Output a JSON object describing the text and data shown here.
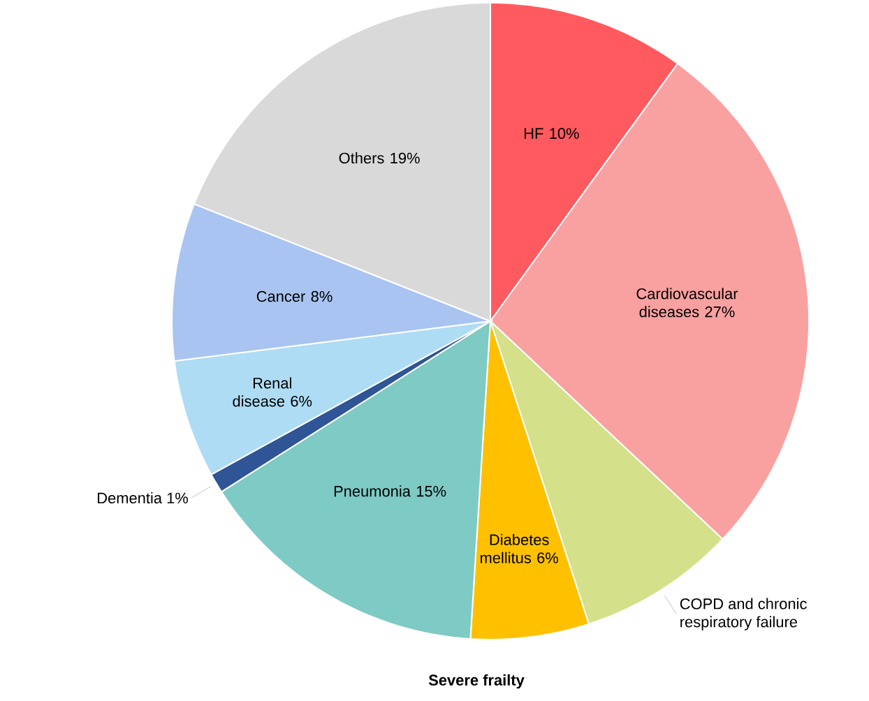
{
  "chart_data": {
    "type": "pie",
    "title": "Severe frailty",
    "categories": [
      "HF",
      "Cardiovascular diseases",
      "COPD and chronic respiratory failure",
      "Diabetes mellitus",
      "Pneumonia",
      "Dementia",
      "Renal disease",
      "Cancer",
      "Others"
    ],
    "values": [
      10,
      27,
      8,
      6,
      15,
      1,
      6,
      8,
      19
    ],
    "value_labels": [
      "10%",
      "27%",
      null,
      "6%",
      "15%",
      "1%",
      "6%",
      "8%",
      "19%"
    ],
    "colors": [
      "#ff5a5f",
      "#f9a0a0",
      "#d4e08a",
      "#ffc000",
      "#7ecac4",
      "#2f5597",
      "#aedcf5",
      "#a9c4f0",
      "#d9d9d9"
    ]
  }
}
